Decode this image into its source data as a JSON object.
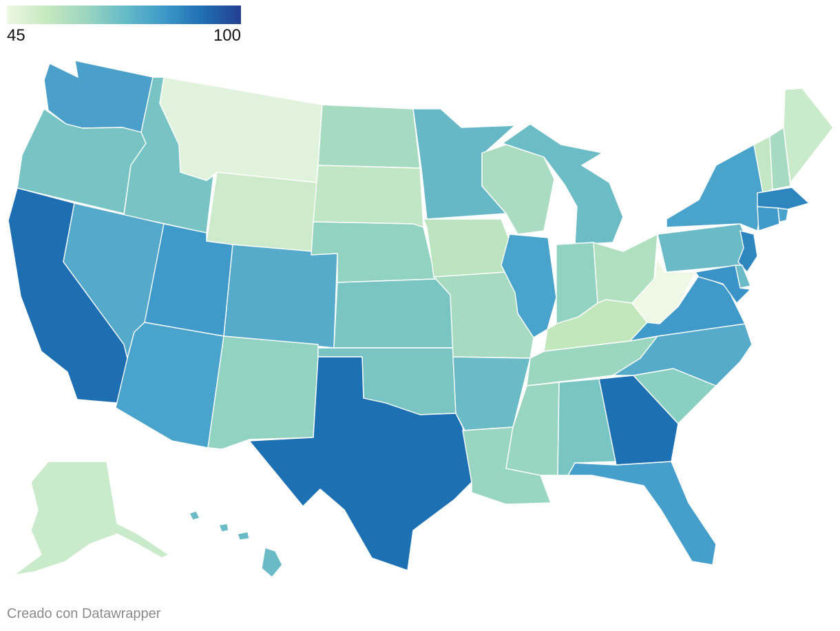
{
  "legend": {
    "min_label": "45",
    "max_label": "100",
    "min": 45,
    "max": 100,
    "colors": [
      "#eef8e4",
      "#c7e9c0",
      "#9fd6c0",
      "#66bcc7",
      "#3f9ac9",
      "#1f6fb2",
      "#253f8f"
    ]
  },
  "credit": "Creado con Datawrapper",
  "states": [
    {
      "id": "WA",
      "color": "#4aa0c8"
    },
    {
      "id": "OR",
      "color": "#78c4c4"
    },
    {
      "id": "CA",
      "color": "#1d6fb2"
    },
    {
      "id": "ID",
      "color": "#78c4c4"
    },
    {
      "id": "NV",
      "color": "#55a9cb"
    },
    {
      "id": "MT",
      "color": "#e1f3dc"
    },
    {
      "id": "WY",
      "color": "#cdebcb"
    },
    {
      "id": "UT",
      "color": "#3f9ac9"
    },
    {
      "id": "AZ",
      "color": "#4aa3ca"
    },
    {
      "id": "CO",
      "color": "#55abc9"
    },
    {
      "id": "NM",
      "color": "#91d2c1"
    },
    {
      "id": "ND",
      "color": "#a6dbc1"
    },
    {
      "id": "SD",
      "color": "#c1e6c5"
    },
    {
      "id": "NE",
      "color": "#91d2c1"
    },
    {
      "id": "KS",
      "color": "#78c5c4"
    },
    {
      "id": "OK",
      "color": "#78c5c4"
    },
    {
      "id": "TX",
      "color": "#1d70b2"
    },
    {
      "id": "MN",
      "color": "#66b8c7"
    },
    {
      "id": "IA",
      "color": "#bce5bf"
    },
    {
      "id": "MO",
      "color": "#a6dbc1"
    },
    {
      "id": "AR",
      "color": "#6bbbc7"
    },
    {
      "id": "LA",
      "color": "#99d6c1"
    },
    {
      "id": "WI",
      "color": "#a9dcc1"
    },
    {
      "id": "IL",
      "color": "#4aa3ca"
    },
    {
      "id": "MI",
      "color": "#6cbcc6"
    },
    {
      "id": "IN",
      "color": "#91d2c1"
    },
    {
      "id": "OH",
      "color": "#b0e0c0"
    },
    {
      "id": "KY",
      "color": "#c3e7bc"
    },
    {
      "id": "TN",
      "color": "#9bd6c1"
    },
    {
      "id": "MS",
      "color": "#99d6c1"
    },
    {
      "id": "AL",
      "color": "#78c5c4"
    },
    {
      "id": "GA",
      "color": "#1d70b2"
    },
    {
      "id": "FL",
      "color": "#459fca"
    },
    {
      "id": "SC",
      "color": "#8ad0c2"
    },
    {
      "id": "NC",
      "color": "#55abc9"
    },
    {
      "id": "VA",
      "color": "#3f9ac9"
    },
    {
      "id": "WV",
      "color": "#eef8e4"
    },
    {
      "id": "PA",
      "color": "#6bbbc7"
    },
    {
      "id": "NY",
      "color": "#4aa3ca"
    },
    {
      "id": "VT",
      "color": "#c3e7c2"
    },
    {
      "id": "NH",
      "color": "#a6dbc1"
    },
    {
      "id": "ME",
      "color": "#c9eacb"
    },
    {
      "id": "MA",
      "color": "#2f86be"
    },
    {
      "id": "CT",
      "color": "#3f9ac9"
    },
    {
      "id": "RI",
      "color": "#4aa3ca"
    },
    {
      "id": "NJ",
      "color": "#2f86be"
    },
    {
      "id": "DE",
      "color": "#6bbbc7"
    },
    {
      "id": "MD",
      "color": "#3a93c6"
    },
    {
      "id": "AK",
      "color": "#c9eacb"
    },
    {
      "id": "HI",
      "color": "#6bbbc7"
    }
  ]
}
